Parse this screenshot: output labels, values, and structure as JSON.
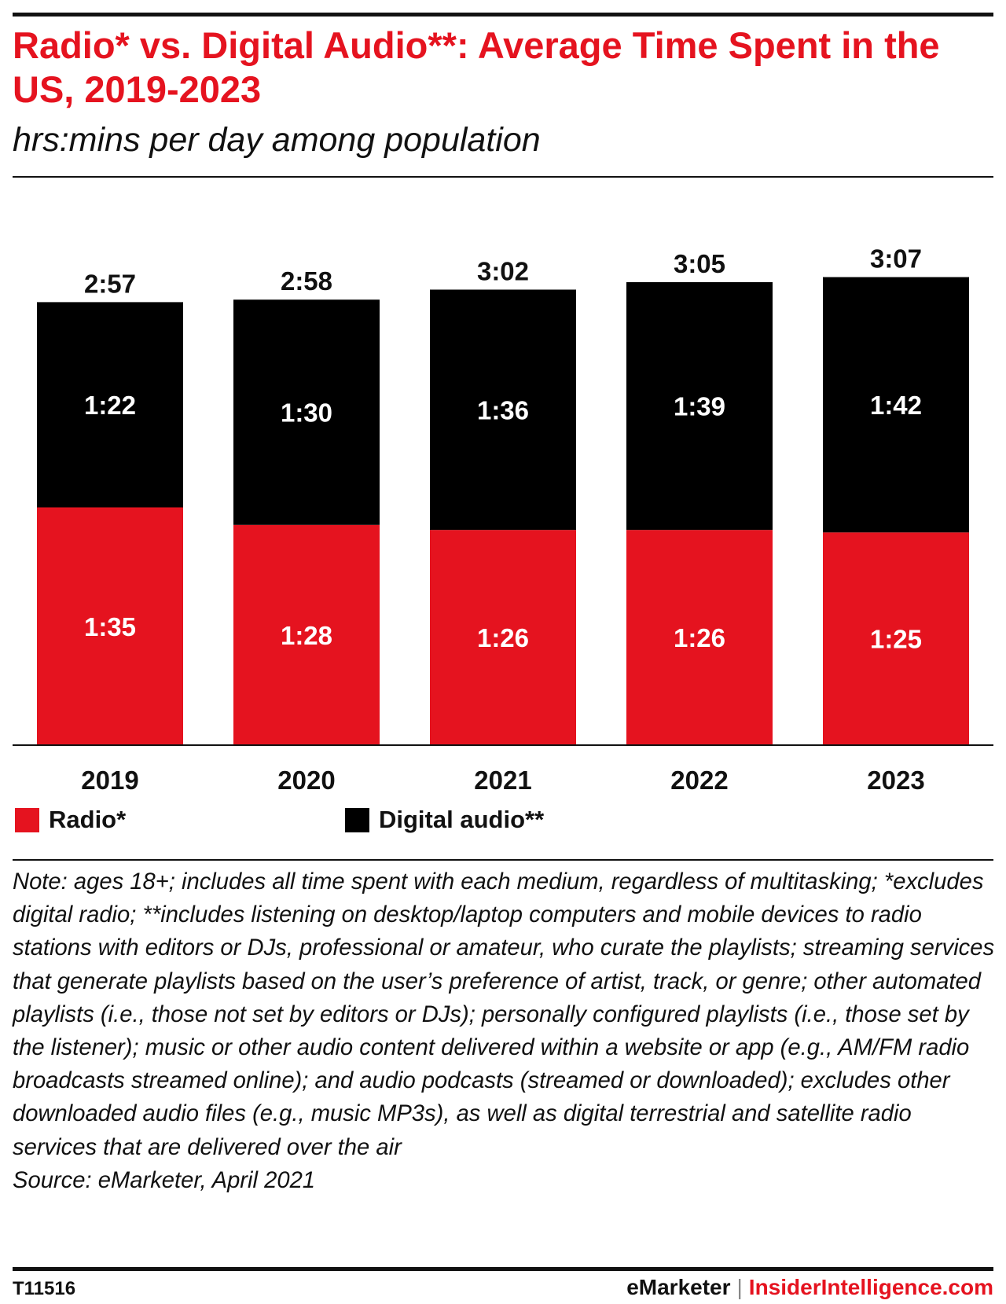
{
  "title": "Radio* vs. Digital Audio**: Average Time Spent in the US, 2019-2023",
  "subtitle": "hrs:mins per day among population",
  "colors": {
    "radio": "#e5131f",
    "digital": "#000000",
    "title": "#e5131f"
  },
  "chart_data": {
    "type": "bar",
    "stacked": true,
    "categories": [
      "2019",
      "2020",
      "2021",
      "2022",
      "2023"
    ],
    "unit": "hrs:mins per day",
    "series": [
      {
        "name": "Radio*",
        "color": "#e5131f",
        "values_minutes": [
          95,
          88,
          86,
          86,
          85
        ],
        "labels": [
          "1:35",
          "1:28",
          "1:26",
          "1:26",
          "1:25"
        ]
      },
      {
        "name": "Digital audio**",
        "color": "#000000",
        "values_minutes": [
          82,
          90,
          96,
          99,
          102
        ],
        "labels": [
          "1:22",
          "1:30",
          "1:36",
          "1:39",
          "1:42"
        ]
      }
    ],
    "totals_minutes": [
      177,
      178,
      182,
      185,
      187
    ],
    "total_labels": [
      "2:57",
      "2:58",
      "3:02",
      "3:05",
      "3:07"
    ],
    "ylim": [
      0,
      190
    ],
    "grid": false,
    "legend_position": "bottom-left"
  },
  "legend": [
    {
      "label": "Radio*",
      "color": "#e5131f"
    },
    {
      "label": "Digital audio**",
      "color": "#000000"
    }
  ],
  "note": "Note: ages 18+; includes all time spent with each medium, regardless of multitasking; *excludes digital radio; **includes listening on desktop/laptop computers and mobile devices to radio stations with editors or DJs, professional or amateur, who curate the playlists; streaming services that generate playlists based on the user’s preference of artist, track, or genre; other automated playlists (i.e., those not set by editors or DJs); personally configured playlists (i.e., those set by the listener); music or other audio content delivered within a website or app (e.g., AM/FM radio broadcasts streamed online); and audio podcasts (streamed or downloaded); excludes other downloaded audio files (e.g., music MP3s), as well as digital terrestrial and satellite radio services that are delivered over the air",
  "source": "Source: eMarketer, April 2021",
  "footer": {
    "chart_id": "T11516",
    "brand_primary": "eMarketer",
    "separator": "|",
    "brand_secondary": "InsiderIntelligence.com"
  }
}
